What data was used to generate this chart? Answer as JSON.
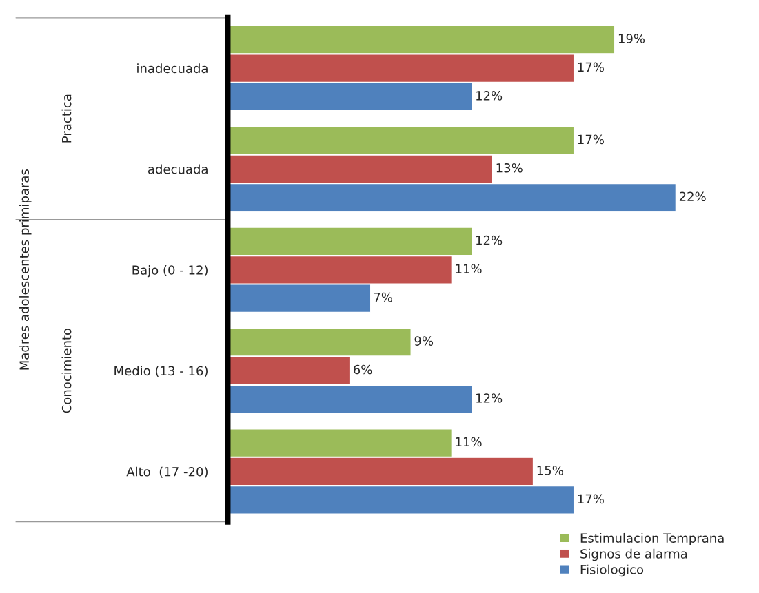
{
  "chart_data": {
    "type": "bar",
    "orientation": "horizontal",
    "categories": [
      "inadecuada",
      "adecuada",
      "Bajo (0 - 12)",
      "Medio (13 - 16)",
      "Alto  (17 -20)"
    ],
    "series": [
      {
        "name": "Estimulacion Temprana",
        "color": "#9bbb59",
        "values": [
          19,
          17,
          12,
          9,
          11
        ],
        "value_labels": [
          "19%",
          "17%",
          "12%",
          "9%",
          "11%"
        ]
      },
      {
        "name": "Signos de alarma",
        "color": "#c0504d",
        "values": [
          17,
          13,
          11,
          6,
          15
        ],
        "value_labels": [
          "17%",
          "13%",
          "11%",
          "6%",
          "15%"
        ]
      },
      {
        "name": "Fisiologico",
        "color": "#4f81bd",
        "values": [
          12,
          22,
          7,
          12,
          17
        ],
        "value_labels": [
          "12%",
          "22%",
          "7%",
          "12%",
          "17%"
        ]
      }
    ],
    "annotations": [
      "Practica",
      "Conocimiento",
      "Madres adolescentes primiparas"
    ],
    "tick_labels": "y",
    "grid": false,
    "legend": "bottom right"
  }
}
